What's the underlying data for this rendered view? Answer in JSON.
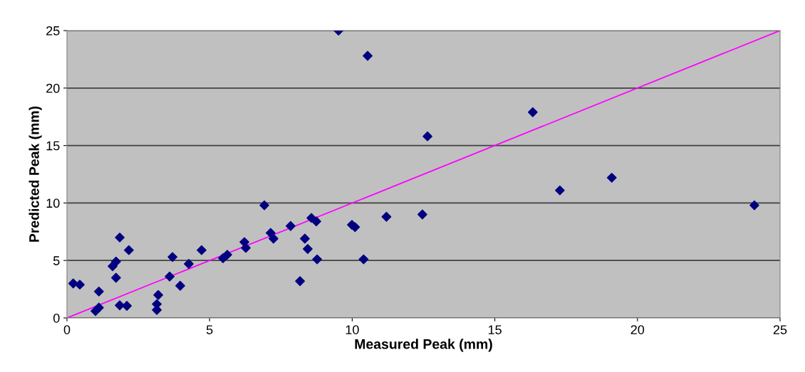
{
  "chart_data": {
    "type": "scatter",
    "xlabel": "Measured Peak (mm)",
    "ylabel": "Predicted Peak (mm)",
    "xlim": [
      0,
      25
    ],
    "ylim": [
      0,
      25
    ],
    "xticks": [
      0,
      5,
      10,
      15,
      20,
      25
    ],
    "yticks": [
      0,
      5,
      10,
      15,
      20,
      25
    ],
    "grid": "y",
    "marker": "diamond",
    "series": [
      {
        "color": "#000080",
        "x": [
          0.22,
          0.45,
          1.12,
          1.12,
          1.0,
          1.85,
          1.6,
          1.72,
          1.72,
          1.85,
          2.1,
          2.17,
          3.2,
          3.15,
          3.15,
          3.6,
          3.7,
          3.97,
          4.27,
          4.72,
          5.47,
          5.62,
          6.22,
          6.27,
          6.92,
          7.14,
          7.24,
          7.84,
          8.17,
          8.34,
          8.44,
          8.57,
          8.74,
          8.77,
          9.52,
          9.99,
          10.1,
          10.4,
          10.54,
          11.2,
          12.46,
          12.64,
          16.33,
          17.28,
          19.1,
          24.1
        ],
        "values": [
          3.0,
          2.9,
          2.3,
          0.9,
          0.6,
          7.0,
          4.5,
          4.9,
          3.5,
          1.1,
          1.05,
          5.9,
          2.0,
          1.2,
          0.7,
          3.6,
          5.3,
          2.8,
          4.7,
          5.9,
          5.2,
          5.5,
          6.6,
          6.1,
          9.8,
          7.4,
          6.9,
          8.0,
          3.2,
          6.9,
          6.0,
          8.7,
          8.4,
          5.1,
          25,
          8.1,
          7.9,
          5.1,
          22.8,
          8.8,
          9.0,
          15.8,
          17.9,
          11.1,
          12.2,
          9.8
        ]
      },
      {
        "type": "line",
        "color": "#ff00ff",
        "x": [
          0,
          25
        ],
        "values": [
          0,
          25
        ],
        "marker": "none"
      }
    ]
  }
}
